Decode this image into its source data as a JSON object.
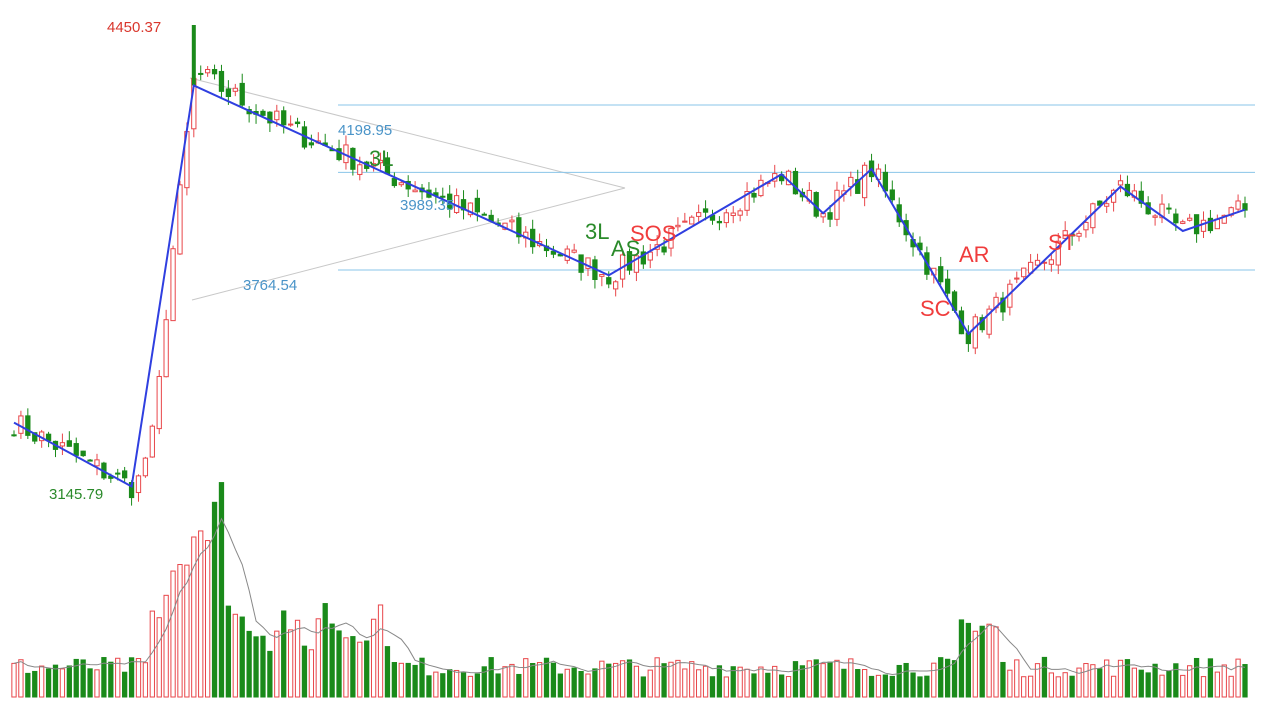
{
  "chart_data": {
    "type": "candlestick",
    "grid": false,
    "colors": {
      "up": "#e8464a",
      "up_fill": "#ffffff",
      "down": "#1a8a1a",
      "wave_line": "#2f3fe0",
      "channel_line": "#8ac4e8",
      "triangle_line": "#c8c8c8",
      "volume_ma": "#888888",
      "high_label": "#d9362c",
      "low_label": "#2a8a2a",
      "level_label": "#4a94c8",
      "phase_label": "#f03c3c",
      "trend_label": "#2a8a2a"
    },
    "price_labels": [
      {
        "text": "4450.37",
        "value": 4450.37,
        "kind": "high"
      },
      {
        "text": "4198.95",
        "value": 4198.95,
        "kind": "level"
      },
      {
        "text": "3989.35",
        "value": 3989.35,
        "kind": "level"
      },
      {
        "text": "3764.54",
        "value": 3764.54,
        "kind": "level"
      },
      {
        "text": "3145.79",
        "value": 3145.79,
        "kind": "low"
      }
    ],
    "phase_labels": [
      "SOS",
      "AR",
      "ST",
      "SC"
    ],
    "trend_labels": [
      "3L",
      "3L",
      "AS"
    ],
    "channel_levels": [
      4225,
      4035,
      3760
    ],
    "wave_points": [
      {
        "i": 0,
        "price": 3330
      },
      {
        "i": 17,
        "price": 3150
      },
      {
        "i": 26,
        "price": 4280
      },
      {
        "i": 86,
        "price": 3745
      },
      {
        "i": 111,
        "price": 4030
      },
      {
        "i": 117,
        "price": 3920
      },
      {
        "i": 124,
        "price": 4045
      },
      {
        "i": 138,
        "price": 3580
      },
      {
        "i": 160,
        "price": 3995
      },
      {
        "i": 169,
        "price": 3870
      },
      {
        "i": 178,
        "price": 3930
      }
    ],
    "candles_summary": "approximately 178 daily candles; low 3145.79, high 4450.37"
  }
}
